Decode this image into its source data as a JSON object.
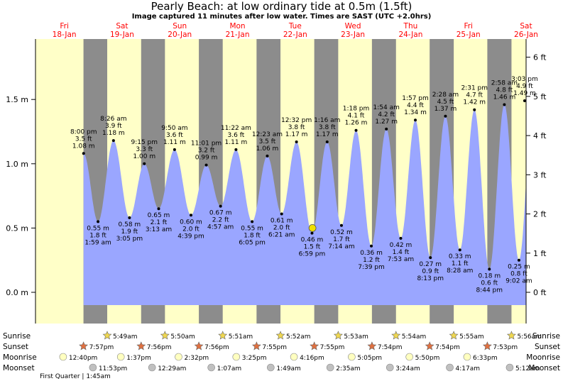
{
  "title": "Pearly Beach: at low  ordinary tide at 0.5m (1.5ft)",
  "subtitle": "Image captured 11 minutes after low water. Times are SAST (UTC +2.0hrs)",
  "colors": {
    "day_band": "#ffffc8",
    "night_band": "#8c8c8c",
    "tide_fill": "#9aa6ff",
    "day_label": "#ff0000",
    "now_marker": "#f0e000"
  },
  "chart_data": {
    "type": "area",
    "ylabel_left_unit": "m",
    "ylabel_right_unit": "ft",
    "ylim_m": [
      -0.1,
      1.95
    ],
    "yticks_left": [
      {
        "value": 0.0,
        "label": "0.0 m"
      },
      {
        "value": 0.5,
        "label": "0.5 m"
      },
      {
        "value": 1.0,
        "label": "1.0 m"
      },
      {
        "value": 1.5,
        "label": "1.5 m"
      }
    ],
    "yticks_right": [
      {
        "value": 0,
        "label": "0 ft"
      },
      {
        "value": 1,
        "label": "1 ft"
      },
      {
        "value": 2,
        "label": "2 ft"
      },
      {
        "value": 3,
        "label": "3 ft"
      },
      {
        "value": 4,
        "label": "4 ft"
      },
      {
        "value": 5,
        "label": "5 ft"
      },
      {
        "value": 6,
        "label": "6 ft"
      }
    ],
    "x_range_hours": [
      0,
      204
    ],
    "days": [
      {
        "name": "Fri",
        "date": "18-Jan"
      },
      {
        "name": "Sat",
        "date": "19-Jan"
      },
      {
        "name": "Sun",
        "date": "20-Jan"
      },
      {
        "name": "Mon",
        "date": "21-Jan"
      },
      {
        "name": "Tue",
        "date": "22-Jan"
      },
      {
        "name": "Wed",
        "date": "23-Jan"
      },
      {
        "name": "Thu",
        "date": "24-Jan"
      },
      {
        "name": "Fri",
        "date": "25-Jan"
      },
      {
        "name": "Sat",
        "date": "26-Jan"
      }
    ],
    "sun": [
      {
        "sunrise": null,
        "sunset": 19.95
      },
      {
        "sunrise": 29.82,
        "sunset": 43.93
      },
      {
        "sunrise": 53.83,
        "sunset": 67.93
      },
      {
        "sunrise": 77.85,
        "sunset": 91.92
      },
      {
        "sunrise": 101.87,
        "sunset": 115.92
      },
      {
        "sunrise": 125.88,
        "sunset": 139.9
      },
      {
        "sunrise": 149.9,
        "sunset": 163.9
      },
      {
        "sunrise": 173.92,
        "sunset": 187.88
      },
      {
        "sunrise": 197.93,
        "sunset": null
      }
    ],
    "tides": [
      {
        "t": 20.0,
        "m": 1.08,
        "type": "high",
        "time": "8:00 pm",
        "ft": "3.5 ft",
        "m_label": "1.08 m"
      },
      {
        "t": 26.0,
        "m": 0.55,
        "type": "low",
        "time": "1:59 am",
        "ft": "1.8 ft",
        "m_label": "0.55 m"
      },
      {
        "t": 32.43,
        "m": 1.18,
        "type": "high",
        "time": "8:26 am",
        "ft": "3.9 ft",
        "m_label": "1.18 m"
      },
      {
        "t": 39.08,
        "m": 0.58,
        "type": "low",
        "time": "3:05 pm",
        "ft": "1.9 ft",
        "m_label": "0.58 m"
      },
      {
        "t": 45.25,
        "m": 1.0,
        "type": "high",
        "time": "9:15 pm",
        "ft": "3.3 ft",
        "m_label": "1.00 m"
      },
      {
        "t": 51.22,
        "m": 0.65,
        "type": "low",
        "time": "3:13 am",
        "ft": "2.1 ft",
        "m_label": "0.65 m"
      },
      {
        "t": 57.83,
        "m": 1.11,
        "type": "high",
        "time": "9:50 am",
        "ft": "3.6 ft",
        "m_label": "1.11 m"
      },
      {
        "t": 64.65,
        "m": 0.6,
        "type": "low",
        "time": "4:39 pm",
        "ft": "2.0 ft",
        "m_label": "0.60 m"
      },
      {
        "t": 71.02,
        "m": 0.99,
        "type": "high",
        "time": "11:01 pm",
        "ft": "3.2 ft",
        "m_label": "0.99 m"
      },
      {
        "t": 76.95,
        "m": 0.67,
        "type": "low",
        "time": "4:57 am",
        "ft": "2.2 ft",
        "m_label": "0.67 m"
      },
      {
        "t": 83.37,
        "m": 1.11,
        "type": "high",
        "time": "11:22 am",
        "ft": "3.6 ft",
        "m_label": "1.11 m"
      },
      {
        "t": 90.08,
        "m": 0.55,
        "type": "low",
        "time": "6:05 pm",
        "ft": "1.8 ft",
        "m_label": "0.55 m"
      },
      {
        "t": 96.38,
        "m": 1.06,
        "type": "high",
        "time": "12:23 am",
        "ft": "3.5 ft",
        "m_label": "1.06 m"
      },
      {
        "t": 102.35,
        "m": 0.61,
        "type": "low",
        "time": "6:21 am",
        "ft": "2.0 ft",
        "m_label": "0.61 m"
      },
      {
        "t": 108.53,
        "m": 1.17,
        "type": "high",
        "time": "12:32 pm",
        "ft": "3.8 ft",
        "m_label": "1.17 m"
      },
      {
        "t": 114.98,
        "m": 0.46,
        "type": "low",
        "time": "6:59 pm",
        "ft": "1.5 ft",
        "m_label": "0.46 m"
      },
      {
        "t": 121.27,
        "m": 1.17,
        "type": "high",
        "time": "1:16 am",
        "ft": "3.8 ft",
        "m_label": "1.17 m"
      },
      {
        "t": 127.23,
        "m": 0.52,
        "type": "low",
        "time": "7:14 am",
        "ft": "1.7 ft",
        "m_label": "0.52 m"
      },
      {
        "t": 133.3,
        "m": 1.26,
        "type": "high",
        "time": "1:18 pm",
        "ft": "4.1 ft",
        "m_label": "1.26 m"
      },
      {
        "t": 139.65,
        "m": 0.36,
        "type": "low",
        "time": "7:39 pm",
        "ft": "1.2 ft",
        "m_label": "0.36 m"
      },
      {
        "t": 145.9,
        "m": 1.27,
        "type": "high",
        "time": "1:54 am",
        "ft": "4.2 ft",
        "m_label": "1.27 m"
      },
      {
        "t": 151.88,
        "m": 0.42,
        "type": "low",
        "time": "7:53 am",
        "ft": "1.4 ft",
        "m_label": "0.42 m"
      },
      {
        "t": 157.95,
        "m": 1.34,
        "type": "high",
        "time": "1:57 pm",
        "ft": "4.4 ft",
        "m_label": "1.34 m"
      },
      {
        "t": 164.22,
        "m": 0.27,
        "type": "low",
        "time": "8:13 pm",
        "ft": "0.9 ft",
        "m_label": "0.27 m"
      },
      {
        "t": 170.47,
        "m": 1.37,
        "type": "high",
        "time": "2:28 am",
        "ft": "4.5 ft",
        "m_label": "1.37 m"
      },
      {
        "t": 176.47,
        "m": 0.33,
        "type": "low",
        "time": "8:28 am",
        "ft": "1.1 ft",
        "m_label": "0.33 m"
      },
      {
        "t": 182.52,
        "m": 1.42,
        "type": "high",
        "time": "2:31 pm",
        "ft": "4.7 ft",
        "m_label": "1.42 m"
      },
      {
        "t": 188.73,
        "m": 0.18,
        "type": "low",
        "time": "8:44 pm",
        "ft": "0.6 ft",
        "m_label": "0.18 m"
      },
      {
        "t": 194.97,
        "m": 1.46,
        "type": "high",
        "time": "2:58 am",
        "ft": "4.8 ft",
        "m_label": "1.46 m"
      },
      {
        "t": 201.03,
        "m": 0.25,
        "type": "low",
        "time": "9:02 am",
        "ft": "0.8 ft",
        "m_label": "0.25 m"
      },
      {
        "t": 207.05,
        "m": 1.49,
        "type": "high",
        "time": "3:03 pm",
        "ft": "4.9 ft",
        "m_label": "1.49 m"
      }
    ],
    "now": {
      "t": 115.17,
      "m": 0.5
    }
  },
  "almanac": {
    "row_labels": [
      "Sunrise",
      "Sunset",
      "Moonrise",
      "Moonset"
    ],
    "sunrise": [
      "",
      "5:49am",
      "5:50am",
      "5:51am",
      "5:52am",
      "5:53am",
      "5:54am",
      "5:55am",
      "5:56am"
    ],
    "sunset": [
      "7:57pm",
      "7:56pm",
      "7:56pm",
      "7:55pm",
      "7:55pm",
      "7:54pm",
      "7:54pm",
      "7:53pm",
      ""
    ],
    "moonrise": [
      "12:40pm",
      "1:37pm",
      "2:32pm",
      "3:25pm",
      "4:16pm",
      "5:05pm",
      "5:50pm",
      "6:33pm",
      ""
    ],
    "moonset": [
      "",
      "11:53pm",
      "12:29am",
      "1:07am",
      "1:49am",
      "2:35am",
      "3:24am",
      "4:17am",
      "5:12am"
    ],
    "phase_note": "First Quarter | 1:45am"
  }
}
